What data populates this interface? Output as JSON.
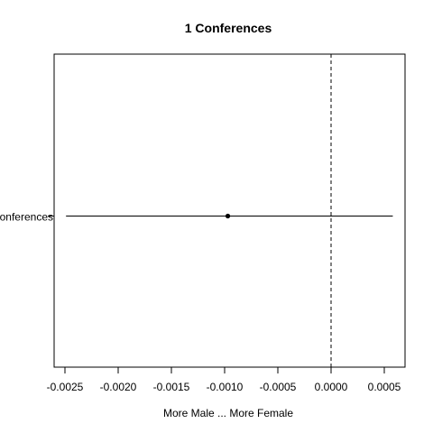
{
  "chart_data": {
    "type": "scatter",
    "subtype": "forest-plot-point-with-interval",
    "title": "1 Conferences",
    "xlabel": "More Male ... More Female",
    "ylabel": "",
    "xlim": [
      -0.0025,
      0.0006
    ],
    "x_ticks": [
      -0.0025,
      -0.002,
      -0.0015,
      -0.001,
      -0.0005,
      0.0,
      0.0005
    ],
    "x_tick_labels": [
      "-0.0025",
      "-0.0020",
      "-0.0015",
      "-0.0010",
      "-0.0005",
      "0.0000",
      "0.0005"
    ],
    "reference_line": {
      "x": 0.0,
      "style": "dashed"
    },
    "grid": false,
    "series": [
      {
        "category": "Conferences",
        "estimate": -0.00097,
        "lower": -0.00249,
        "upper": 0.00058
      }
    ]
  }
}
